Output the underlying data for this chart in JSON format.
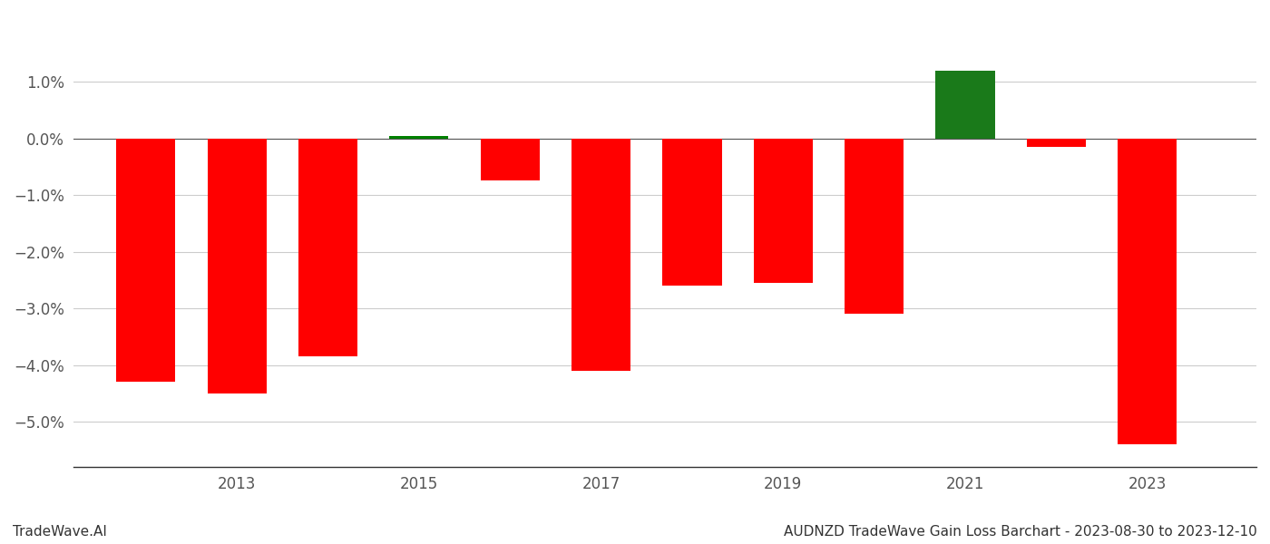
{
  "years": [
    2012,
    2013,
    2014,
    2015,
    2016,
    2017,
    2018,
    2019,
    2020,
    2021,
    2022,
    2023
  ],
  "values": [
    -0.043,
    -0.045,
    -0.0385,
    0.0004,
    -0.0075,
    -0.041,
    -0.026,
    -0.0255,
    -0.031,
    0.012,
    -0.0015,
    -0.054
  ],
  "colors": [
    "#ff0000",
    "#ff0000",
    "#ff0000",
    "#008000",
    "#ff0000",
    "#ff0000",
    "#ff0000",
    "#ff0000",
    "#ff0000",
    "#1a7a1a",
    "#ff0000",
    "#ff0000"
  ],
  "x_ticks": [
    2013,
    2015,
    2017,
    2019,
    2021,
    2023
  ],
  "title_left": "TradeWave.AI",
  "title_right": "AUDNZD TradeWave Gain Loss Barchart - 2023-08-30 to 2023-12-10",
  "ylim_min": -0.058,
  "ylim_max": 0.022,
  "background_color": "#ffffff",
  "grid_color": "#cccccc",
  "bar_width": 0.65,
  "title_fontsize": 11,
  "tick_fontsize": 12,
  "axis_label_color": "#555555",
  "yticks": [
    -0.05,
    -0.04,
    -0.03,
    -0.02,
    -0.01,
    0.0,
    0.01
  ],
  "xlim_min": 2011.2,
  "xlim_max": 2024.2
}
